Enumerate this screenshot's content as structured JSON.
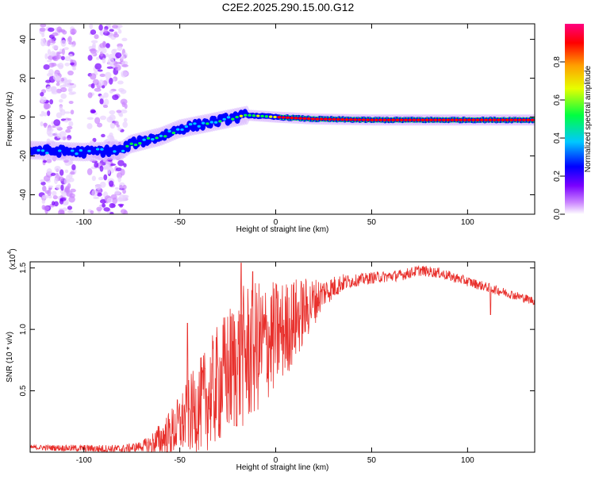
{
  "title": "C2E2.2025.290.15.00.G12",
  "chart_data": [
    {
      "type": "heatmap",
      "xlabel": "Height of straight line (km)",
      "ylabel": "Frequency (Hz)",
      "xlim": [
        -128,
        135
      ],
      "ylim": [
        -50,
        48
      ],
      "xticks": [
        -100,
        -50,
        0,
        50,
        100
      ],
      "yticks": [
        -40,
        -20,
        0,
        20,
        40
      ],
      "colorbar": {
        "label": "Normalized spectral amplitude",
        "range": [
          0,
          1
        ],
        "ticks": [
          "0.0",
          "0.2",
          "0.4",
          "0.6",
          "0.8"
        ],
        "tick_values": [
          0,
          0.2,
          0.4,
          0.6,
          0.8
        ],
        "colors": [
          "#ffffff",
          "#cc88ff",
          "#7a00ff",
          "#0000ff",
          "#00c8ff",
          "#00ff40",
          "#e6ff00",
          "#ffa000",
          "#ff0000",
          "#ff0080"
        ]
      },
      "ridge": [
        {
          "x": -128,
          "f": -17
        },
        {
          "x": -100,
          "f": -18
        },
        {
          "x": -80,
          "f": -17
        },
        {
          "x": -76,
          "f": -14
        },
        {
          "x": -60,
          "f": -10
        },
        {
          "x": -50,
          "f": -6
        },
        {
          "x": -30,
          "f": -2
        },
        {
          "x": -15,
          "f": 1
        },
        {
          "x": 0,
          "f": 0
        },
        {
          "x": 20,
          "f": -1
        },
        {
          "x": 50,
          "f": -1.5
        },
        {
          "x": 100,
          "f": -1.5
        },
        {
          "x": 135,
          "f": -1.5
        }
      ],
      "noise_regions_x": [
        [
          -122,
          -105
        ],
        [
          -97,
          -78
        ]
      ]
    },
    {
      "type": "line",
      "xlabel": "Height of straight line (km)",
      "ylabel": "SNR (10 * v/v)",
      "y_multiplier": "(x10",
      "y_exponent": "4",
      "xlim": [
        -128,
        135
      ],
      "ylim": [
        0,
        15500
      ],
      "xticks": [
        -100,
        -50,
        0,
        50,
        100
      ],
      "yticks": [
        0.5,
        1.0,
        1.5
      ],
      "ytick_labels": [
        "0.5",
        "1.0",
        "1.5"
      ],
      "color": "#e8302c",
      "envelope": [
        {
          "x": -128,
          "y": 400
        },
        {
          "x": -80,
          "y": 250
        },
        {
          "x": -65,
          "y": 600
        },
        {
          "x": -55,
          "y": 1500
        },
        {
          "x": -45,
          "y": 3000
        },
        {
          "x": -35,
          "y": 4500
        },
        {
          "x": -25,
          "y": 6500
        },
        {
          "x": -15,
          "y": 8000
        },
        {
          "x": -5,
          "y": 9000
        },
        {
          "x": 5,
          "y": 10000
        },
        {
          "x": 15,
          "y": 11500
        },
        {
          "x": 25,
          "y": 13000
        },
        {
          "x": 35,
          "y": 13800
        },
        {
          "x": 50,
          "y": 14200
        },
        {
          "x": 65,
          "y": 14400
        },
        {
          "x": 75,
          "y": 14800
        },
        {
          "x": 85,
          "y": 14600
        },
        {
          "x": 100,
          "y": 13900
        },
        {
          "x": 115,
          "y": 13200
        },
        {
          "x": 135,
          "y": 12300
        }
      ],
      "noise_amplitude": [
        {
          "x": -128,
          "a": 200
        },
        {
          "x": -70,
          "a": 400
        },
        {
          "x": -50,
          "a": 2500
        },
        {
          "x": -30,
          "a": 5000
        },
        {
          "x": -15,
          "a": 6000
        },
        {
          "x": 10,
          "a": 3500
        },
        {
          "x": 25,
          "a": 1200
        },
        {
          "x": 40,
          "a": 500
        },
        {
          "x": 135,
          "a": 350
        }
      ],
      "spikes": [
        {
          "x": -46,
          "y": 10500
        },
        {
          "x": -18,
          "y": 15400
        },
        {
          "x": -12,
          "y": 14700
        },
        {
          "x": 112,
          "y": 11200
        }
      ]
    }
  ]
}
